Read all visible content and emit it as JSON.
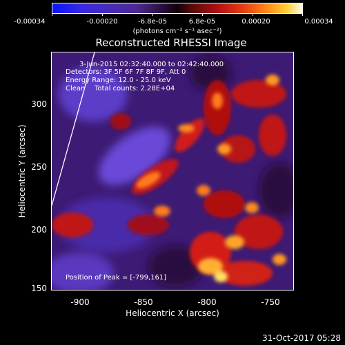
{
  "colorbar": {
    "tick_labels": [
      "-0.00034",
      "-0.00020",
      "-6.8e-05",
      "6.8e-05",
      "0.00020",
      "0.00034"
    ],
    "unit": "(photons cm⁻² s⁻¹ asec⁻²)",
    "colors": [
      "#0a14ff",
      "#4a2bb8",
      "#2a0e40",
      "#120008",
      "#b01010",
      "#ff8a1a",
      "#fffbe8"
    ]
  },
  "title": "Reconstructed RHESSI Image",
  "annotations": {
    "time": "3-Jun-2015 02:32:40.000 to 02:42:40.000",
    "detectors": "Detectors: 3F 5F 6F 7F 8F 9F, Att 0",
    "energy": "Energy Range: 12.0 - 25.0 keV",
    "algorithm": "Clean",
    "total_counts": "Total counts: 2.28E+04",
    "peak": "Position of Peak = [-799,161]"
  },
  "axes": {
    "xlabel": "Heliocentric X (arcsec)",
    "ylabel": "Heliocentric Y (arcsec)",
    "xticks": [
      "-900",
      "-850",
      "-800",
      "-750"
    ],
    "yticks": [
      "150",
      "200",
      "250",
      "300"
    ],
    "xlim": [
      -920,
      -730
    ],
    "ylim": [
      150,
      340
    ]
  },
  "footer": "31-Oct-2017 05:28"
}
